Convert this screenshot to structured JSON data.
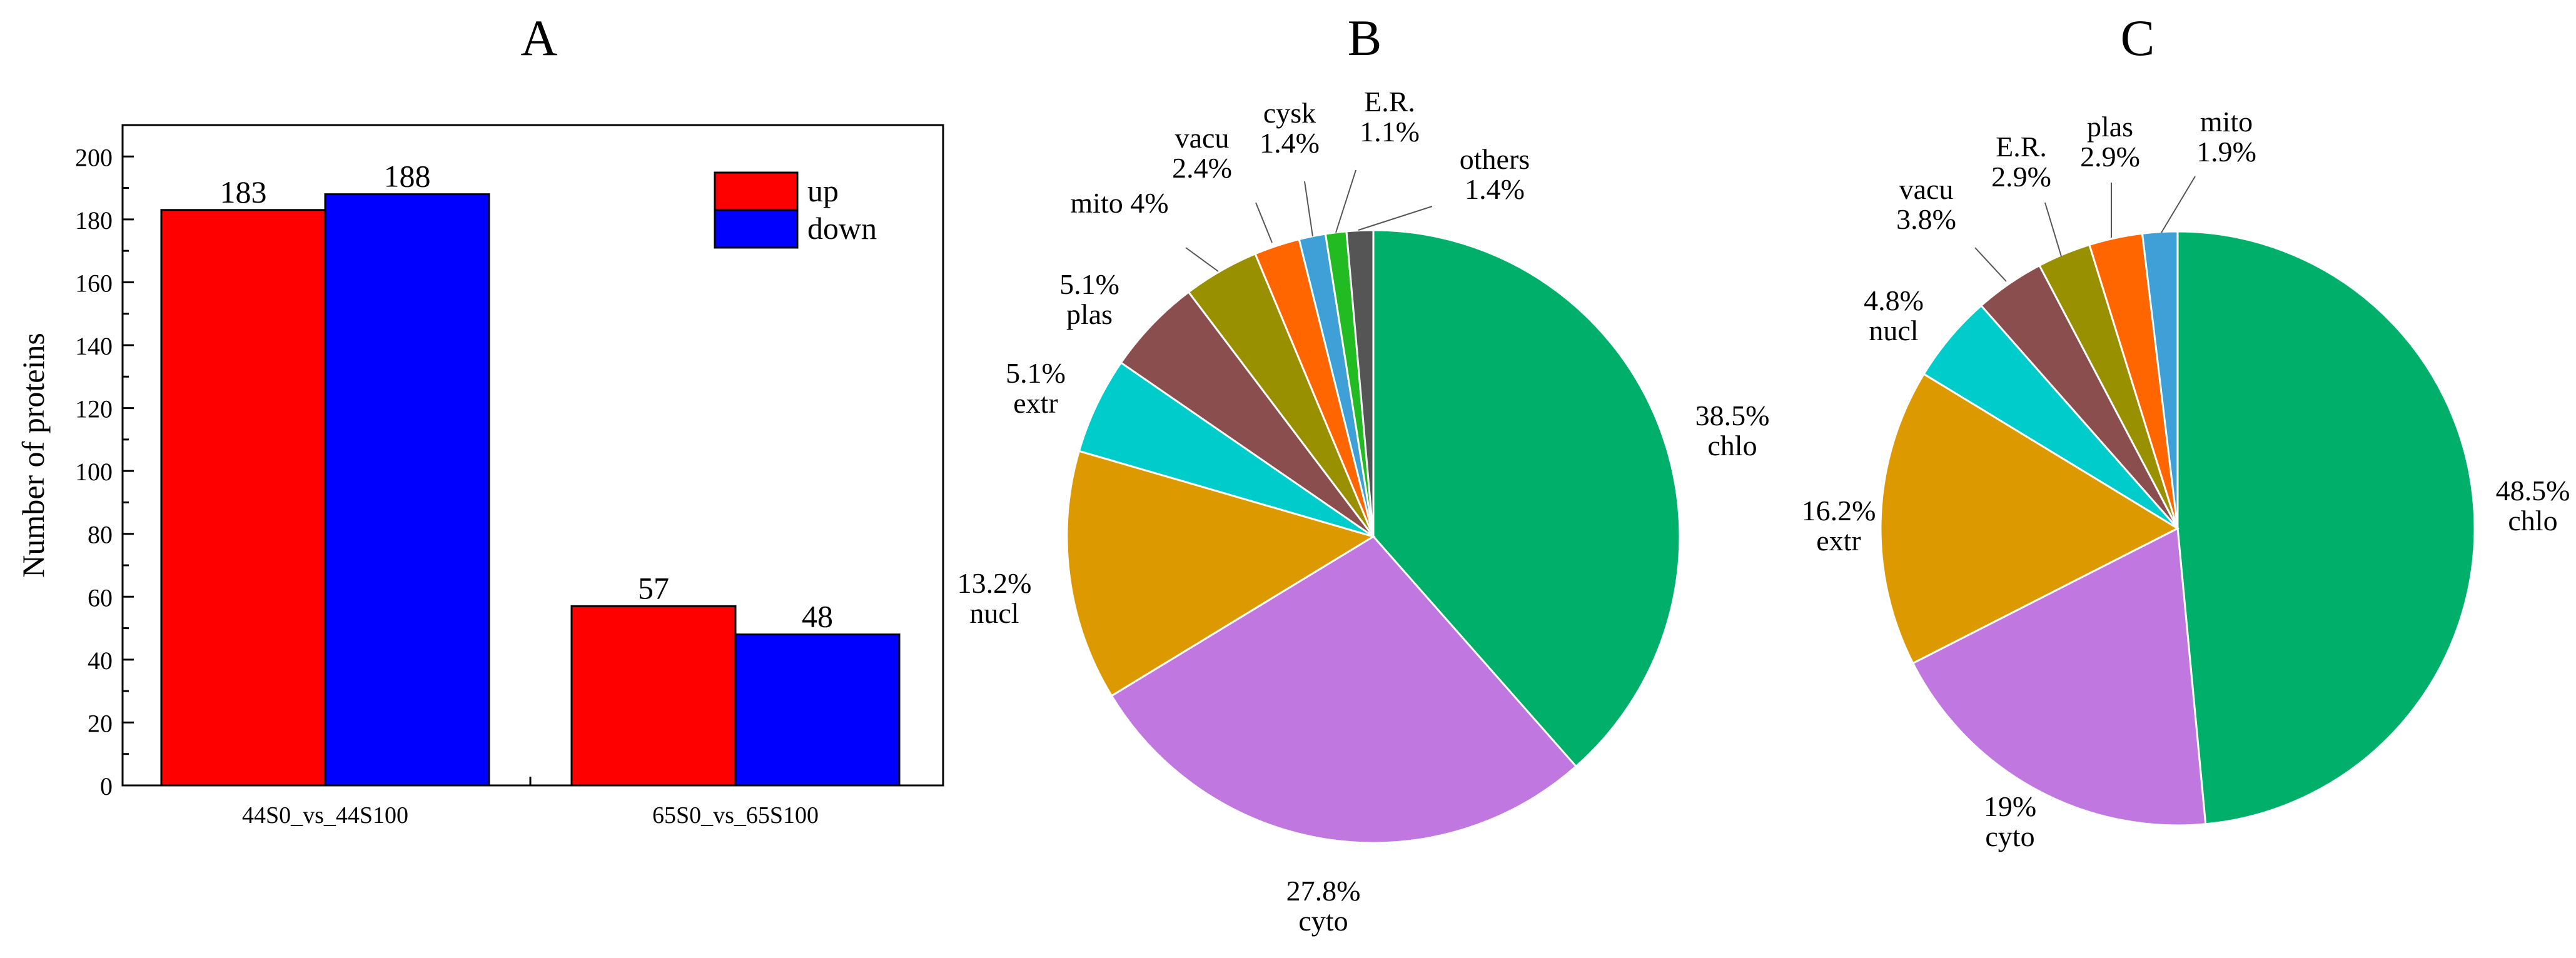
{
  "chart_data": [
    {
      "id": "A",
      "type": "bar",
      "title": "A",
      "categories": [
        "44S0_vs_44S100",
        "65S0_vs_65S100"
      ],
      "series": [
        {
          "name": "up",
          "color": "#ff0000",
          "values": [
            183,
            57
          ]
        },
        {
          "name": "down",
          "color": "#0000ff",
          "values": [
            188,
            48
          ]
        }
      ],
      "ylabel": "Number of proteins",
      "xlabel": "",
      "ylim": [
        0,
        210
      ],
      "yticks": [
        0,
        20,
        40,
        60,
        80,
        100,
        120,
        140,
        160,
        180,
        200
      ],
      "grid": false,
      "legend": "top-right"
    },
    {
      "id": "B",
      "type": "pie",
      "title": "B",
      "slices": [
        {
          "name": "chlo",
          "value": 38.5,
          "label": "38.5%",
          "color": "#00b06a"
        },
        {
          "name": "cyto",
          "value": 27.8,
          "label": "27.8%",
          "color": "#c177e0"
        },
        {
          "name": "nucl",
          "value": 13.2,
          "label": "13.2%",
          "color": "#dd9900"
        },
        {
          "name": "extr",
          "value": 5.1,
          "label": "5.1%",
          "color": "#00cccc"
        },
        {
          "name": "plas",
          "value": 5.1,
          "label": "5.1%",
          "color": "#8b4e4e"
        },
        {
          "name": "mito",
          "value": 4.0,
          "label": "4%",
          "color": "#999000"
        },
        {
          "name": "vacu",
          "value": 2.4,
          "label": "2.4%",
          "color": "#ff6600"
        },
        {
          "name": "cysk",
          "value": 1.4,
          "label": "1.4%",
          "color": "#3fa0d8"
        },
        {
          "name": "E.R.",
          "value": 1.1,
          "label": "1.1%",
          "color": "#22bb22"
        },
        {
          "name": "others",
          "value": 1.4,
          "label": "1.4%",
          "color": "#555555"
        }
      ]
    },
    {
      "id": "C",
      "type": "pie",
      "title": "C",
      "slices": [
        {
          "name": "chlo",
          "value": 48.5,
          "label": "48.5%",
          "color": "#00b06a"
        },
        {
          "name": "cyto",
          "value": 19.0,
          "label": "19%",
          "color": "#c177e0"
        },
        {
          "name": "extr",
          "value": 16.2,
          "label": "16.2%",
          "color": "#dd9900"
        },
        {
          "name": "nucl",
          "value": 4.8,
          "label": "4.8%",
          "color": "#00cccc"
        },
        {
          "name": "vacu",
          "value": 3.8,
          "label": "3.8%",
          "color": "#8b4e4e"
        },
        {
          "name": "E.R.",
          "value": 2.9,
          "label": "2.9%",
          "color": "#999000"
        },
        {
          "name": "plas",
          "value": 2.9,
          "label": "2.9%",
          "color": "#ff6600"
        },
        {
          "name": "mito",
          "value": 1.9,
          "label": "1.9%",
          "color": "#3fa0d8"
        }
      ]
    }
  ]
}
